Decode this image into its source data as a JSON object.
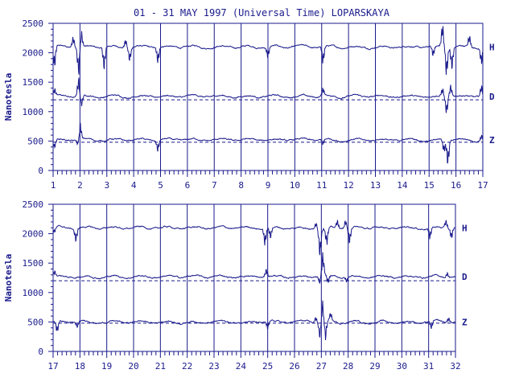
{
  "title": "01 - 31 MAY 1997 (Universal Time) LOPARSKAYA",
  "colors": {
    "line": "#1a1a8c",
    "frame": "#1a1a8c",
    "background": "#ffffff"
  },
  "chart_data": [
    {
      "type": "line",
      "ylabel": "Nanotesla",
      "xlim": [
        1,
        17
      ],
      "ylim": [
        0,
        2500
      ],
      "x_ticks": [
        "1",
        "2",
        "3",
        "4",
        "5",
        "6",
        "7",
        "8",
        "9",
        "10",
        "11",
        "12",
        "13",
        "14",
        "15",
        "16",
        "17"
      ],
      "y_ticks": [
        "0",
        "500",
        "1000",
        "1500",
        "2000",
        "2500"
      ],
      "grid": "vertical lines at each day",
      "baselines": [
        {
          "component": "D",
          "value": 1200
        },
        {
          "component": "Z",
          "value": 480
        }
      ],
      "series": [
        {
          "name": "H",
          "level": 2100,
          "events": [
            [
              1.05,
              -400
            ],
            [
              1.75,
              200
            ],
            [
              1.95,
              -500
            ],
            [
              2.05,
              300
            ],
            [
              2.9,
              -400
            ],
            [
              3.7,
              150
            ],
            [
              3.85,
              -250
            ],
            [
              4.9,
              -300
            ],
            [
              9.0,
              -200
            ],
            [
              11.05,
              -300
            ],
            [
              15.15,
              -200
            ],
            [
              15.5,
              400
            ],
            [
              15.65,
              -500
            ],
            [
              15.85,
              -400
            ],
            [
              16.5,
              200
            ],
            [
              16.95,
              -300
            ]
          ]
        },
        {
          "name": "D",
          "level": 1260,
          "events": [
            [
              1.05,
              150
            ],
            [
              1.95,
              350
            ],
            [
              2.05,
              -200
            ],
            [
              11.05,
              150
            ],
            [
              15.5,
              150
            ],
            [
              15.65,
              -300
            ],
            [
              15.8,
              200
            ],
            [
              16.95,
              200
            ]
          ]
        },
        {
          "name": "Z",
          "level": 520,
          "events": [
            [
              1.05,
              -150
            ],
            [
              1.95,
              -200
            ],
            [
              2.0,
              400
            ],
            [
              4.9,
              -200
            ],
            [
              11.05,
              -100
            ],
            [
              15.55,
              -200
            ],
            [
              15.7,
              -450
            ],
            [
              16.95,
              100
            ]
          ]
        }
      ]
    },
    {
      "type": "line",
      "ylabel": "Nanotesla",
      "xlim": [
        17,
        32
      ],
      "ylim": [
        0,
        2500
      ],
      "x_ticks": [
        "17",
        "18",
        "19",
        "20",
        "21",
        "22",
        "23",
        "24",
        "25",
        "26",
        "27",
        "28",
        "29",
        "30",
        "31",
        "32"
      ],
      "y_ticks": [
        "0",
        "500",
        "1000",
        "1500",
        "2000",
        "2500"
      ],
      "grid": "vertical lines at each day",
      "baselines": [
        {
          "component": "D",
          "value": 1200
        },
        {
          "component": "Z",
          "value": 480
        }
      ],
      "series": [
        {
          "name": "H",
          "level": 2100,
          "events": [
            [
              17.05,
              -100
            ],
            [
              17.85,
              -250
            ],
            [
              24.9,
              -300
            ],
            [
              25.1,
              -200
            ],
            [
              26.8,
              100
            ],
            [
              26.95,
              -500
            ],
            [
              27.2,
              -300
            ],
            [
              27.6,
              150
            ],
            [
              27.9,
              150
            ],
            [
              28.05,
              -300
            ],
            [
              31.05,
              -200
            ],
            [
              31.65,
              150
            ],
            [
              31.85,
              -200
            ]
          ]
        },
        {
          "name": "D",
          "level": 1270,
          "events": [
            [
              17.05,
              100
            ],
            [
              24.95,
              150
            ],
            [
              26.95,
              -150
            ],
            [
              27.05,
              400
            ],
            [
              27.25,
              -150
            ],
            [
              27.95,
              -100
            ],
            [
              31.7,
              100
            ]
          ]
        },
        {
          "name": "Z",
          "level": 500,
          "events": [
            [
              17.15,
              -200
            ],
            [
              17.9,
              -100
            ],
            [
              25.0,
              -150
            ],
            [
              26.8,
              100
            ],
            [
              26.95,
              -300
            ],
            [
              27.05,
              400
            ],
            [
              27.15,
              -350
            ],
            [
              27.35,
              150
            ],
            [
              31.1,
              -150
            ],
            [
              31.75,
              100
            ]
          ]
        }
      ]
    }
  ]
}
